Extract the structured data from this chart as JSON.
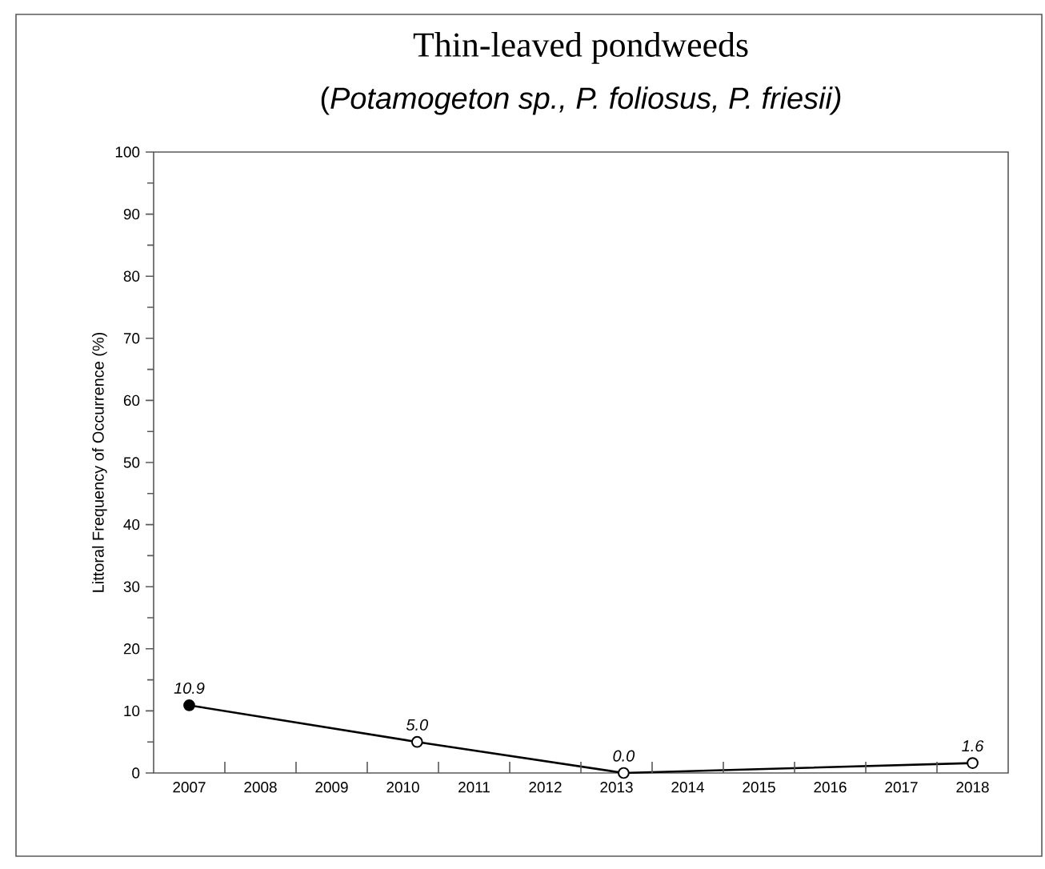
{
  "chart_data": {
    "type": "line",
    "title": "Thin-leaved pondweeds",
    "subtitle": "(*Potamogeton sp., P. foliosus, P. friesii)*",
    "ylabel": "Littoral Frequency of Occurrence (%)",
    "xlim": [
      2006.5,
      2018.5
    ],
    "xticks": [
      2007,
      2008,
      2009,
      2010,
      2011,
      2012,
      2013,
      2014,
      2015,
      2016,
      2017,
      2018,
      {
        "value": 2007.5,
        "label": null
      },
      {
        "value": 2008.5,
        "label": null
      },
      {
        "value": 2009.5,
        "label": null
      },
      {
        "value": 2010.5,
        "label": null
      },
      {
        "value": 2011.5,
        "label": null
      },
      {
        "value": 2012.5,
        "label": null
      },
      {
        "value": 2013.5,
        "label": null
      },
      {
        "value": 2014.5,
        "label": null
      },
      {
        "value": 2015.5,
        "label": null
      },
      {
        "value": 2016.5,
        "label": null
      },
      {
        "value": 2017.5,
        "label": null
      }
    ],
    "ylim": [
      0,
      100
    ],
    "yticks": [
      0,
      10,
      20,
      30,
      40,
      50,
      60,
      70,
      80,
      90,
      100
    ],
    "marker": "circle",
    "line_style": "solid",
    "series": [
      {
        "color": "#000000",
        "x": [
          2007,
          2010.2,
          2013.1,
          2018
        ],
        "values": [
          10.9,
          5.0,
          0.0,
          1.6
        ],
        "colors": [
          "#000000",
          "#ffffff",
          "#ffffff",
          "#ffffff"
        ],
        "value_labels": [
          "10.9",
          "5.0",
          "0.0",
          "1.6"
        ]
      }
    ]
  }
}
